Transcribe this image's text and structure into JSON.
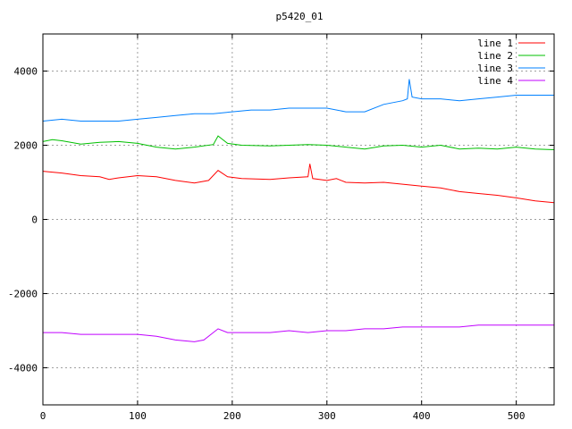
{
  "chart_data": {
    "type": "line",
    "title": "p5420_01",
    "xlabel": "",
    "ylabel": "",
    "xlim": [
      0,
      540
    ],
    "ylim": [
      -5000,
      5000
    ],
    "x_ticks": [
      0,
      100,
      200,
      300,
      400,
      500
    ],
    "x_tick_labels": [
      "0",
      "100",
      "200",
      "300",
      "400",
      "500"
    ],
    "y_ticks": [
      -4000,
      -2000,
      0,
      2000,
      4000
    ],
    "y_tick_labels": [
      "-4000",
      "-2000",
      "0",
      "2000",
      "4000"
    ],
    "grid": true,
    "legend_position": "top-right",
    "series": [
      {
        "name": "line 1",
        "color": "#ff0000",
        "points": [
          [
            0,
            1300
          ],
          [
            20,
            1250
          ],
          [
            40,
            1180
          ],
          [
            60,
            1150
          ],
          [
            70,
            1080
          ],
          [
            80,
            1120
          ],
          [
            100,
            1180
          ],
          [
            120,
            1150
          ],
          [
            140,
            1050
          ],
          [
            160,
            980
          ],
          [
            175,
            1050
          ],
          [
            185,
            1320
          ],
          [
            195,
            1150
          ],
          [
            210,
            1100
          ],
          [
            240,
            1080
          ],
          [
            260,
            1120
          ],
          [
            280,
            1150
          ],
          [
            282,
            1500
          ],
          [
            285,
            1100
          ],
          [
            300,
            1050
          ],
          [
            310,
            1100
          ],
          [
            320,
            1000
          ],
          [
            340,
            980
          ],
          [
            360,
            1000
          ],
          [
            380,
            950
          ],
          [
            400,
            900
          ],
          [
            420,
            850
          ],
          [
            440,
            750
          ],
          [
            460,
            700
          ],
          [
            480,
            650
          ],
          [
            500,
            580
          ],
          [
            520,
            500
          ],
          [
            540,
            450
          ]
        ]
      },
      {
        "name": "line 2",
        "color": "#00c000",
        "points": [
          [
            0,
            2100
          ],
          [
            10,
            2150
          ],
          [
            20,
            2120
          ],
          [
            40,
            2030
          ],
          [
            60,
            2080
          ],
          [
            80,
            2100
          ],
          [
            100,
            2050
          ],
          [
            120,
            1950
          ],
          [
            140,
            1900
          ],
          [
            160,
            1950
          ],
          [
            180,
            2020
          ],
          [
            185,
            2250
          ],
          [
            195,
            2050
          ],
          [
            210,
            2000
          ],
          [
            240,
            1980
          ],
          [
            260,
            2000
          ],
          [
            280,
            2020
          ],
          [
            300,
            2000
          ],
          [
            320,
            1950
          ],
          [
            340,
            1900
          ],
          [
            360,
            1980
          ],
          [
            380,
            2000
          ],
          [
            400,
            1950
          ],
          [
            420,
            2000
          ],
          [
            440,
            1900
          ],
          [
            460,
            1920
          ],
          [
            480,
            1900
          ],
          [
            500,
            1950
          ],
          [
            520,
            1900
          ],
          [
            540,
            1880
          ]
        ]
      },
      {
        "name": "line 3",
        "color": "#0080ff",
        "points": [
          [
            0,
            2650
          ],
          [
            20,
            2700
          ],
          [
            40,
            2650
          ],
          [
            60,
            2650
          ],
          [
            80,
            2650
          ],
          [
            100,
            2700
          ],
          [
            120,
            2750
          ],
          [
            140,
            2800
          ],
          [
            160,
            2850
          ],
          [
            180,
            2850
          ],
          [
            200,
            2900
          ],
          [
            220,
            2950
          ],
          [
            240,
            2950
          ],
          [
            260,
            3000
          ],
          [
            280,
            3000
          ],
          [
            300,
            3000
          ],
          [
            320,
            2900
          ],
          [
            340,
            2900
          ],
          [
            360,
            3100
          ],
          [
            380,
            3200
          ],
          [
            385,
            3250
          ],
          [
            387,
            3780
          ],
          [
            390,
            3300
          ],
          [
            400,
            3250
          ],
          [
            420,
            3250
          ],
          [
            440,
            3200
          ],
          [
            460,
            3250
          ],
          [
            480,
            3300
          ],
          [
            500,
            3350
          ],
          [
            520,
            3350
          ],
          [
            540,
            3350
          ]
        ]
      },
      {
        "name": "line 4",
        "color": "#c000ff",
        "points": [
          [
            0,
            -3050
          ],
          [
            20,
            -3050
          ],
          [
            40,
            -3100
          ],
          [
            60,
            -3100
          ],
          [
            80,
            -3100
          ],
          [
            100,
            -3100
          ],
          [
            120,
            -3150
          ],
          [
            140,
            -3250
          ],
          [
            160,
            -3300
          ],
          [
            170,
            -3250
          ],
          [
            185,
            -2950
          ],
          [
            195,
            -3050
          ],
          [
            210,
            -3050
          ],
          [
            240,
            -3050
          ],
          [
            260,
            -3000
          ],
          [
            280,
            -3050
          ],
          [
            300,
            -3000
          ],
          [
            320,
            -3000
          ],
          [
            340,
            -2950
          ],
          [
            360,
            -2950
          ],
          [
            380,
            -2900
          ],
          [
            400,
            -2900
          ],
          [
            420,
            -2900
          ],
          [
            440,
            -2900
          ],
          [
            460,
            -2850
          ],
          [
            480,
            -2850
          ],
          [
            500,
            -2850
          ],
          [
            520,
            -2850
          ],
          [
            540,
            -2850
          ]
        ]
      }
    ]
  }
}
